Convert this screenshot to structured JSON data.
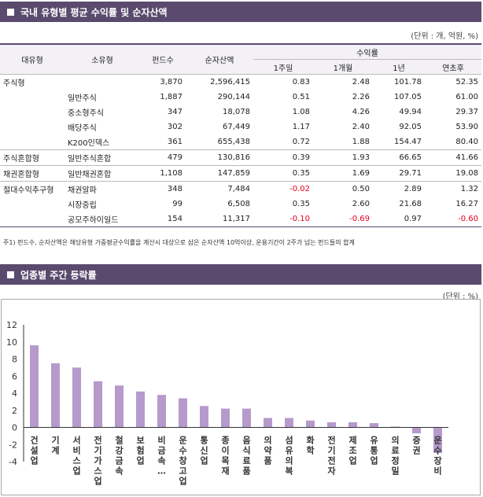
{
  "section1": {
    "title": "국내 유형별 평균 수익률 및 순자산액",
    "unit": "(단위 : 개, 억원, %)"
  },
  "table": {
    "headers": {
      "type": "대유형",
      "subtype": "소유형",
      "funds": "펀드수",
      "assets": "순자산액",
      "returns": "수익률",
      "w1": "1주일",
      "m1": "1개월",
      "y1": "1년",
      "ytd": "연초후"
    },
    "rows": [
      {
        "type": "주식형",
        "sub": "",
        "funds": "3,870",
        "assets": "2,596,415",
        "w1": "0.83",
        "m1": "2.48",
        "y1": "101.78",
        "ytd": "52.35"
      },
      {
        "type": "",
        "sub": "일반주식",
        "funds": "1,887",
        "assets": "290,144",
        "w1": "0.51",
        "m1": "2.26",
        "y1": "107.05",
        "ytd": "61.00"
      },
      {
        "type": "",
        "sub": "중소형주식",
        "funds": "347",
        "assets": "18,078",
        "w1": "1.08",
        "m1": "4.26",
        "y1": "49.94",
        "ytd": "29.37"
      },
      {
        "type": "",
        "sub": "배당주식",
        "funds": "302",
        "assets": "67,449",
        "w1": "1.17",
        "m1": "2.40",
        "y1": "92.05",
        "ytd": "53.90"
      },
      {
        "type": "",
        "sub": "K200인덱스",
        "funds": "361",
        "assets": "655,438",
        "w1": "0.72",
        "m1": "1.88",
        "y1": "154.47",
        "ytd": "80.40"
      },
      {
        "type": "주식혼합형",
        "sub": "일반주식혼합",
        "funds": "479",
        "assets": "130,816",
        "w1": "0.39",
        "m1": "1.93",
        "y1": "66.65",
        "ytd": "41.66"
      },
      {
        "type": "채권혼합형",
        "sub": "일반채권혼합",
        "funds": "1,108",
        "assets": "147,859",
        "w1": "0.35",
        "m1": "1.69",
        "y1": "29.71",
        "ytd": "19.08"
      },
      {
        "type": "절대수익추구형",
        "sub": "채권알파",
        "funds": "348",
        "assets": "7,484",
        "w1": "-0.02",
        "m1": "0.50",
        "y1": "2.89",
        "ytd": "1.32"
      },
      {
        "type": "",
        "sub": "시장중립",
        "funds": "99",
        "assets": "6,508",
        "w1": "0.35",
        "m1": "2.60",
        "y1": "21.68",
        "ytd": "16.27"
      },
      {
        "type": "",
        "sub": "공모주하이일드",
        "funds": "154",
        "assets": "11,317",
        "w1": "-0.10",
        "m1": "-0.69",
        "y1": "0.97",
        "ytd": "-0.60"
      }
    ],
    "footnote": "주1) 펀드수, 순자산액은 해당유형 가중평균수익률을 계산시 대상으로 삼은 순자산액 10억이상, 운용기간이 2주가 넘는 펀드들의 합계"
  },
  "section2": {
    "title": "업종별 주간 등락률",
    "unit": "(단위 : %)"
  },
  "chart_data": {
    "type": "bar",
    "title": "업종별 주간 등락률",
    "categories": [
      "건설업",
      "기계",
      "서비스업",
      "전기가스업",
      "철강금속",
      "보험업",
      "비금속…",
      "운수창고업",
      "통신업",
      "종이목재",
      "음식료품",
      "의약품",
      "섬유의복",
      "화학",
      "전기전자",
      "제조업",
      "유통업",
      "의료정밀",
      "증권",
      "운수장비"
    ],
    "values": [
      9.6,
      7.5,
      7.0,
      5.4,
      4.9,
      4.2,
      3.8,
      3.4,
      2.5,
      2.2,
      2.2,
      1.1,
      1.1,
      0.8,
      0.6,
      0.6,
      0.5,
      0.1,
      -0.7,
      -3.0
    ],
    "ylim": [
      -4,
      12
    ],
    "yticks": [
      "-4",
      "-2",
      "0",
      "2",
      "4",
      "6",
      "8",
      "10",
      "12"
    ],
    "bar_color": "#b59acb",
    "axis_line_color": "#333333"
  }
}
